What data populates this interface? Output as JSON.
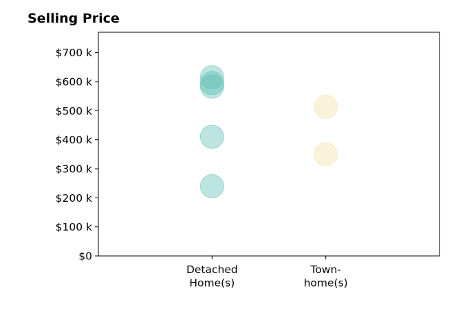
{
  "chart_data": {
    "type": "scatter",
    "title": "Selling Price",
    "xlabel": "",
    "ylabel": "",
    "categories": [
      {
        "lines": [
          "Detached",
          "Home(s)"
        ]
      },
      {
        "lines": [
          "Town-",
          "home(s)"
        ]
      }
    ],
    "xlim": [
      -1,
      2
    ],
    "ylim": [
      0,
      770
    ],
    "yticks": [
      0,
      100,
      200,
      300,
      400,
      500,
      600,
      700
    ],
    "ytick_labels": [
      "$0",
      "$100 k",
      "$200 k",
      "$300 k",
      "$400 k",
      "$500 k",
      "$600 k",
      "$700 k"
    ],
    "grid": false,
    "series": [
      {
        "category_index": 0,
        "values": [
          615,
          595,
          583,
          410,
          240
        ],
        "color": "#5fbfb4"
      },
      {
        "category_index": 1,
        "values": [
          513,
          350
        ],
        "color": "#f3dfa8"
      }
    ]
  }
}
